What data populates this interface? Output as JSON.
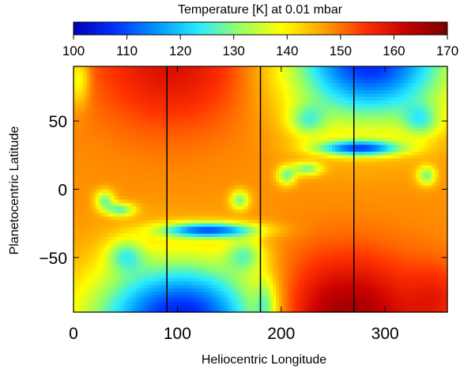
{
  "chart_data": {
    "type": "heatmap",
    "title": "Temperature [K] at 0.01 mbar",
    "xlabel": "Heliocentric Longitude",
    "ylabel": "Planetocentric Latitude",
    "xlim": [
      0,
      360
    ],
    "ylim": [
      -90,
      90
    ],
    "x_ticks": [
      "0",
      "100",
      "200",
      "300"
    ],
    "y_ticks": [
      "50",
      "0",
      "−50"
    ],
    "x_tick_values": [
      0,
      100,
      200,
      300
    ],
    "y_tick_values": [
      50,
      0,
      -50
    ],
    "colorbar": {
      "title": "Temperature [K] at 0.01 mbar",
      "range": [
        100,
        170
      ],
      "ticks": [
        "100",
        "110",
        "120",
        "130",
        "140",
        "150",
        "160",
        "170"
      ],
      "tick_values": [
        100,
        110,
        120,
        130,
        140,
        150,
        160,
        170
      ],
      "colors": [
        "#0000b4",
        "#0032ff",
        "#0096ff",
        "#28ebff",
        "#96ff64",
        "#ffff00",
        "#ffa500",
        "#ff3200",
        "#c80000",
        "#780000"
      ]
    },
    "vertical_lines_longitude": [
      90,
      180,
      270
    ],
    "grid": false,
    "field_description_points": [
      {
        "lon": 50,
        "lat": 80,
        "temp": 158
      },
      {
        "lon": 140,
        "lat": 80,
        "temp": 158
      },
      {
        "lon": 240,
        "lat": -82,
        "temp": 168
      },
      {
        "lon": 330,
        "lat": -82,
        "temp": 160
      },
      {
        "lon": 45,
        "lat": -85,
        "temp": 108
      },
      {
        "lon": 150,
        "lat": -85,
        "temp": 103
      },
      {
        "lon": 240,
        "lat": 85,
        "temp": 110
      },
      {
        "lon": 330,
        "lat": 85,
        "temp": 112
      },
      {
        "lon": 130,
        "lat": -30,
        "temp": 113
      },
      {
        "lon": 290,
        "lat": 30,
        "temp": 113
      },
      {
        "lon": 5,
        "lat": 80,
        "temp": 135
      },
      {
        "lon": 185,
        "lat": -85,
        "temp": 130
      }
    ]
  }
}
